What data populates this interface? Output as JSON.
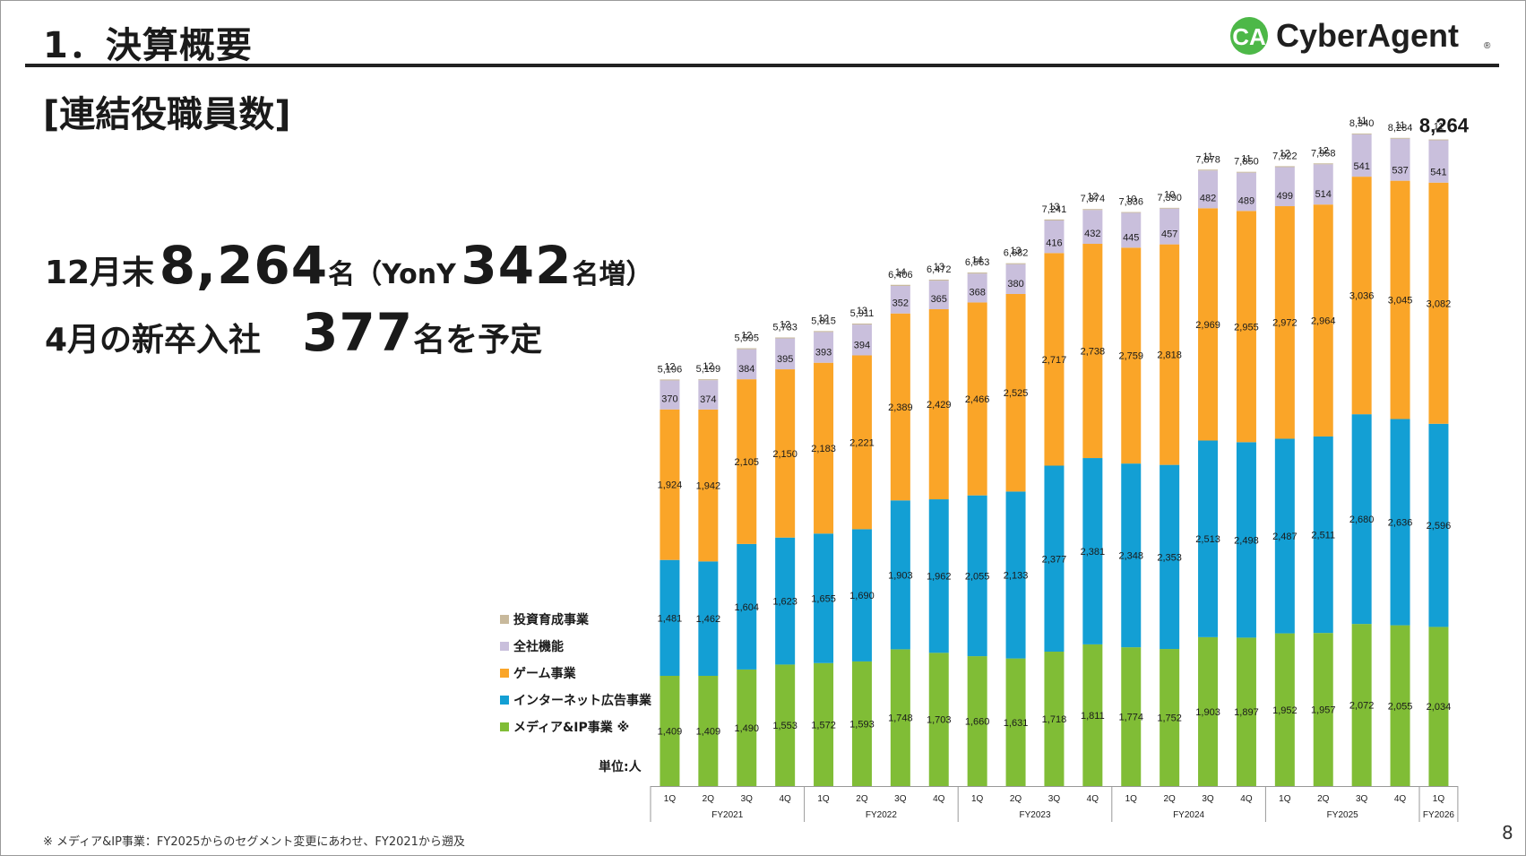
{
  "header": {
    "title": "1．決算概要",
    "logo_text": "CyberAgent",
    "logo_mark": "CA",
    "logo_reg": "®"
  },
  "subtitle": "[連結役職員数]",
  "headline": {
    "line1": {
      "prefix": "12月末",
      "value": "8,264",
      "unit": "名",
      "paren_open": "（YonY",
      "increase": "342",
      "increase_unit": "名増）"
    },
    "line2": {
      "prefix": "4月の新卒入社",
      "value": "377",
      "suffix": "名を予定"
    }
  },
  "footnote": "※ メディア&IP事業：FY2025からのセグメント変更にあわせ、FY2021から遡及",
  "page_number": "8",
  "chart_data": {
    "type": "bar",
    "stacked": true,
    "title": "",
    "unit_label": "単位:人",
    "highlight_total": "8,264",
    "categories": [
      "1Q",
      "2Q",
      "3Q",
      "4Q",
      "1Q",
      "2Q",
      "3Q",
      "4Q",
      "1Q",
      "2Q",
      "3Q",
      "4Q",
      "1Q",
      "2Q",
      "3Q",
      "4Q",
      "1Q",
      "2Q",
      "3Q",
      "4Q",
      "1Q"
    ],
    "fiscal_years": [
      {
        "label": "FY2021",
        "count": 4
      },
      {
        "label": "FY2022",
        "count": 4
      },
      {
        "label": "FY2023",
        "count": 4
      },
      {
        "label": "FY2024",
        "count": 4
      },
      {
        "label": "FY2025",
        "count": 4
      },
      {
        "label": "FY2026",
        "count": 1
      }
    ],
    "series": [
      {
        "name": "メディア&IP事業 ※",
        "color": "#80bd36",
        "values": [
          1409,
          1409,
          1490,
          1553,
          1572,
          1593,
          1748,
          1703,
          1660,
          1631,
          1718,
          1811,
          1774,
          1752,
          1903,
          1897,
          1952,
          1957,
          2072,
          2055,
          2034
        ]
      },
      {
        "name": "インターネット広告事業",
        "color": "#139fd4",
        "values": [
          1481,
          1462,
          1604,
          1623,
          1655,
          1690,
          1903,
          1962,
          2055,
          2133,
          2377,
          2381,
          2348,
          2353,
          2513,
          2498,
          2487,
          2511,
          2680,
          2636,
          2596
        ]
      },
      {
        "name": "ゲーム事業",
        "color": "#faa528",
        "values": [
          1924,
          1942,
          2105,
          2150,
          2183,
          2221,
          2389,
          2429,
          2466,
          2525,
          2717,
          2738,
          2759,
          2818,
          2969,
          2955,
          2972,
          2964,
          3036,
          3045,
          3082
        ]
      },
      {
        "name": "全社機能",
        "color": "#c9bfdc",
        "values": [
          370,
          374,
          384,
          395,
          393,
          394,
          352,
          365,
          368,
          380,
          416,
          432,
          445,
          457,
          482,
          489,
          499,
          514,
          541,
          537,
          541
        ]
      },
      {
        "name": "投資育成事業",
        "color": "#c8b99c",
        "values": [
          12,
          12,
          12,
          12,
          12,
          13,
          14,
          13,
          14,
          13,
          13,
          12,
          10,
          10,
          11,
          11,
          12,
          12,
          11,
          11,
          11
        ]
      }
    ],
    "totals": [
      5196,
      5199,
      5595,
      5733,
      5815,
      5911,
      6406,
      6472,
      6563,
      6682,
      7241,
      7374,
      7336,
      7390,
      7878,
      7850,
      7922,
      7958,
      8340,
      8284,
      8264
    ],
    "legend_order": [
      "投資育成事業",
      "全社機能",
      "ゲーム事業",
      "インターネット広告事業",
      "メディア&IP事業 ※"
    ],
    "ylim": [
      0,
      8400
    ]
  }
}
